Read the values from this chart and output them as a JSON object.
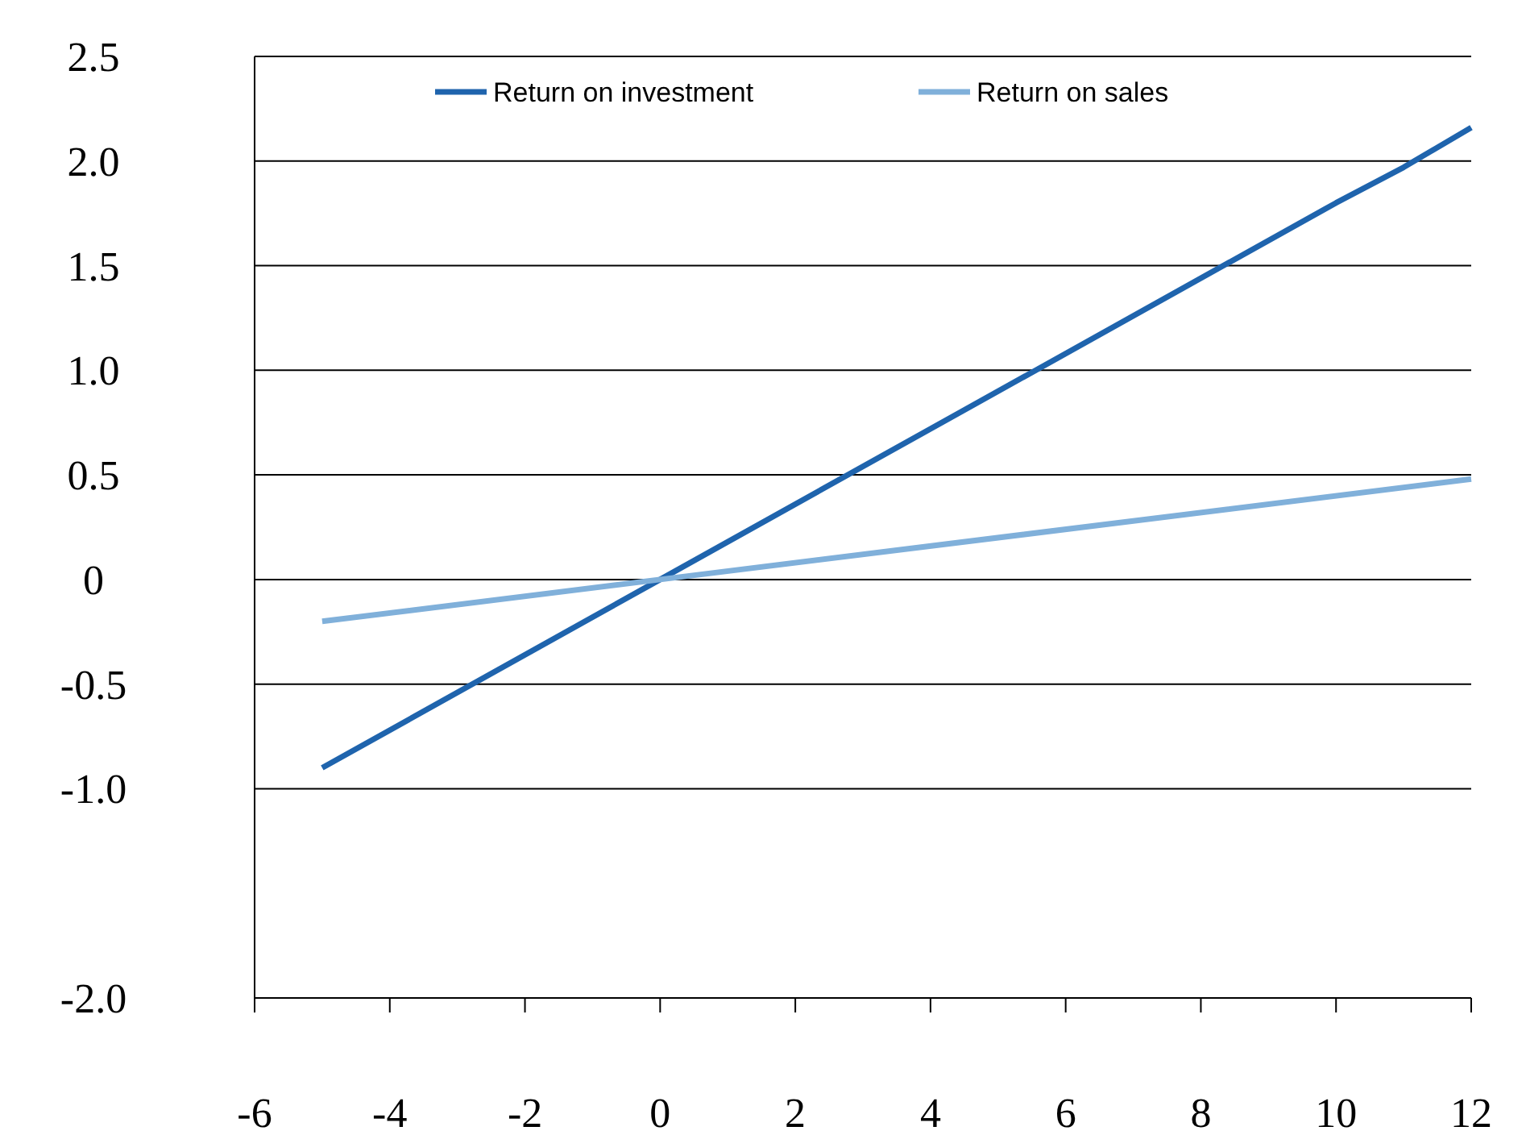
{
  "chart_data": {
    "type": "line",
    "x": [
      -5,
      0,
      10,
      11,
      12
    ],
    "xlim": [
      -6,
      12
    ],
    "xticks": [
      -6,
      -4,
      -2,
      0,
      2,
      4,
      6,
      8,
      10,
      12
    ],
    "ylim": [
      -2,
      2.5
    ],
    "yticks": [
      {
        "value": -2,
        "label": "-2.0"
      },
      {
        "value": -1,
        "label": "-1.0"
      },
      -0.5,
      0,
      0.5,
      {
        "value": 1,
        "label": "1.0"
      },
      1.5,
      {
        "value": 2,
        "label": "2.0"
      },
      2.5
    ],
    "series": [
      {
        "name": "Return on investment",
        "color": "#1f64ad",
        "values": [
          -0.9,
          0,
          1.8,
          1.97,
          2.16
        ]
      },
      {
        "name": "Return on sales",
        "color": "#80b0da",
        "x": [
          -5,
          0,
          12
        ],
        "values": [
          -0.2,
          0,
          0.48
        ]
      }
    ],
    "grid": "y",
    "legend": "top",
    "marker": "none",
    "line_style": "solid"
  }
}
